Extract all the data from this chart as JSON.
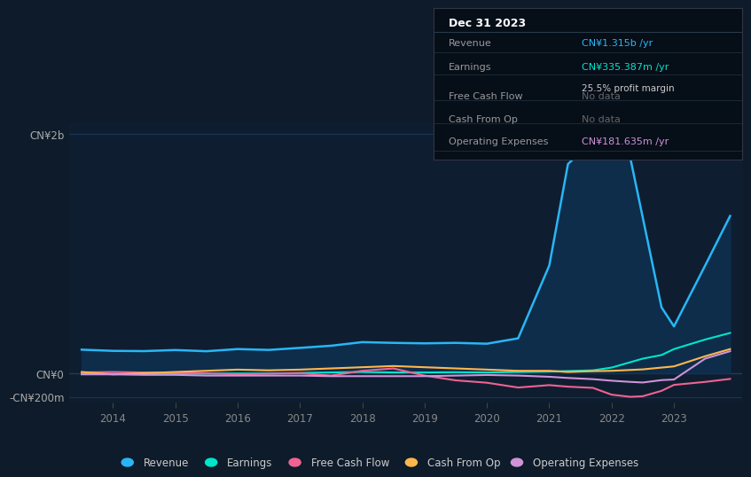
{
  "bg_color": "#0d1b2a",
  "plot_bg_color": "#0e1e30",
  "grid_color": "#1e3a5f",
  "title_box": {
    "date": "Dec 31 2023",
    "rows": [
      {
        "label": "Revenue",
        "value": "CN¥1.315b /yr",
        "value_color": "#29b6f6",
        "note": null,
        "note_color": null
      },
      {
        "label": "Earnings",
        "value": "CN¥335.387m /yr",
        "value_color": "#00e5cc",
        "note": "25.5% profit margin",
        "note_color": "#cccccc"
      },
      {
        "label": "Free Cash Flow",
        "value": "No data",
        "value_color": "#666666",
        "note": null,
        "note_color": null
      },
      {
        "label": "Cash From Op",
        "value": "No data",
        "value_color": "#666666",
        "note": null,
        "note_color": null
      },
      {
        "label": "Operating Expenses",
        "value": "CN¥181.635m /yr",
        "value_color": "#ce93d8",
        "note": null,
        "note_color": null
      }
    ]
  },
  "years": [
    2013.5,
    2014.0,
    2014.5,
    2015.0,
    2015.5,
    2016.0,
    2016.5,
    2017.0,
    2017.5,
    2018.0,
    2018.5,
    2019.0,
    2019.5,
    2020.0,
    2020.5,
    2021.0,
    2021.3,
    2021.7,
    2022.0,
    2022.3,
    2022.5,
    2022.8,
    2023.0,
    2023.5,
    2023.9
  ],
  "revenue": [
    195,
    185,
    183,
    192,
    182,
    200,
    193,
    210,
    228,
    258,
    252,
    248,
    252,
    245,
    290,
    900,
    1750,
    1950,
    1950,
    1800,
    1300,
    550,
    390,
    900,
    1315
  ],
  "earnings": [
    -8,
    -6,
    -8,
    -6,
    -6,
    -5,
    -5,
    0,
    4,
    8,
    4,
    4,
    6,
    4,
    8,
    12,
    16,
    22,
    45,
    90,
    120,
    150,
    200,
    280,
    335
  ],
  "free_cash_flow": [
    5,
    8,
    4,
    4,
    -2,
    -12,
    -6,
    -2,
    -22,
    18,
    38,
    -22,
    -62,
    -82,
    -122,
    -102,
    -115,
    -125,
    -182,
    -200,
    -195,
    -150,
    -100,
    -75,
    -50
  ],
  "cash_from_op": [
    8,
    -12,
    -2,
    8,
    18,
    28,
    22,
    28,
    38,
    48,
    58,
    48,
    38,
    28,
    18,
    18,
    8,
    15,
    18,
    25,
    30,
    45,
    55,
    140,
    200
  ],
  "operating_expenses": [
    -12,
    -12,
    -16,
    -16,
    -22,
    -22,
    -22,
    -22,
    -27,
    -27,
    -27,
    -27,
    -22,
    -17,
    -22,
    -32,
    -42,
    -52,
    -65,
    -75,
    -80,
    -60,
    -55,
    120,
    182
  ],
  "revenue_color": "#29b6f6",
  "revenue_fill_color": "#0d3050",
  "earnings_color": "#00e5cc",
  "free_cash_flow_color": "#f06292",
  "cash_from_op_color": "#ffb74d",
  "operating_expenses_color": "#ce93d8",
  "ylim": [
    -250,
    2100
  ],
  "xlim": [
    2013.3,
    2024.1
  ],
  "xticks": [
    2014,
    2015,
    2016,
    2017,
    2018,
    2019,
    2020,
    2021,
    2022,
    2023
  ],
  "ytick_positions": [
    2000,
    0,
    -200
  ],
  "ytick_labels": [
    "CN¥2b",
    "CN¥0",
    "-CN¥200m"
  ],
  "legend_items": [
    {
      "label": "Revenue",
      "color": "#29b6f6"
    },
    {
      "label": "Earnings",
      "color": "#00e5cc"
    },
    {
      "label": "Free Cash Flow",
      "color": "#f06292"
    },
    {
      "label": "Cash From Op",
      "color": "#ffb74d"
    },
    {
      "label": "Operating Expenses",
      "color": "#ce93d8"
    }
  ]
}
